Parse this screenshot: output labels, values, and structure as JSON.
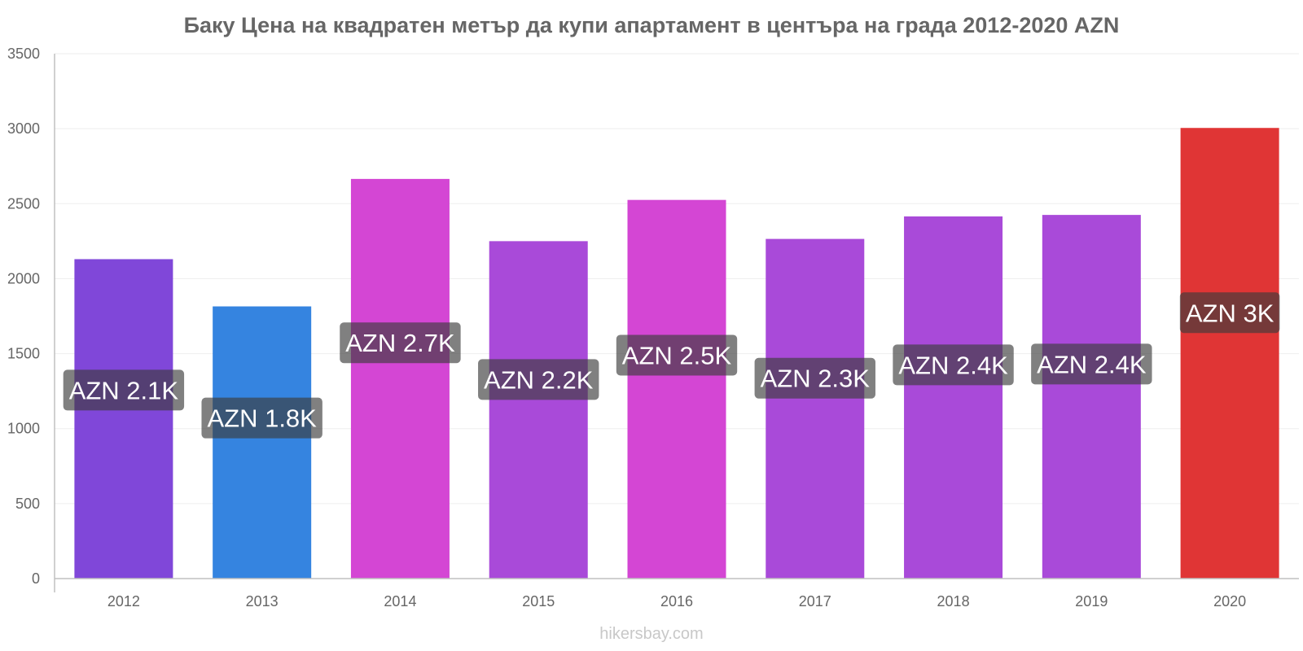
{
  "chart_data": {
    "type": "bar",
    "title": "Баку Цена на квадратен метър да купи апартамент в центъра на града 2012-2020 AZN",
    "categories": [
      "2012",
      "2013",
      "2014",
      "2015",
      "2016",
      "2017",
      "2018",
      "2019",
      "2020"
    ],
    "values": [
      2130,
      1815,
      2665,
      2250,
      2525,
      2265,
      2415,
      2425,
      3005
    ],
    "data_labels": [
      "AZN 2.1K",
      "AZN 1.8K",
      "AZN 2.7K",
      "AZN 2.2K",
      "AZN 2.5K",
      "AZN 2.3K",
      "AZN 2.4K",
      "AZN 2.4K",
      "AZN 3K"
    ],
    "bar_colors": [
      "#8047d9",
      "#3584e0",
      "#d446d4",
      "#a94ad9",
      "#d446d4",
      "#a94ad9",
      "#a94ad9",
      "#a94ad9",
      "#e03535"
    ],
    "label_colors": [
      "#4a2a80",
      "#1f4d83",
      "#7a2a7a",
      "#5a2a80",
      "#7a2a7a",
      "#5a2a80",
      "#5a2a80",
      "#5a2a80",
      "#7a1f1f"
    ],
    "ylim": [
      0,
      3500
    ],
    "yticks": [
      0,
      500,
      1000,
      1500,
      2000,
      2500,
      3000,
      3500
    ],
    "xlabel": "",
    "ylabel": "",
    "grid": true,
    "legend": "none"
  },
  "watermark": "hikersbay.com"
}
